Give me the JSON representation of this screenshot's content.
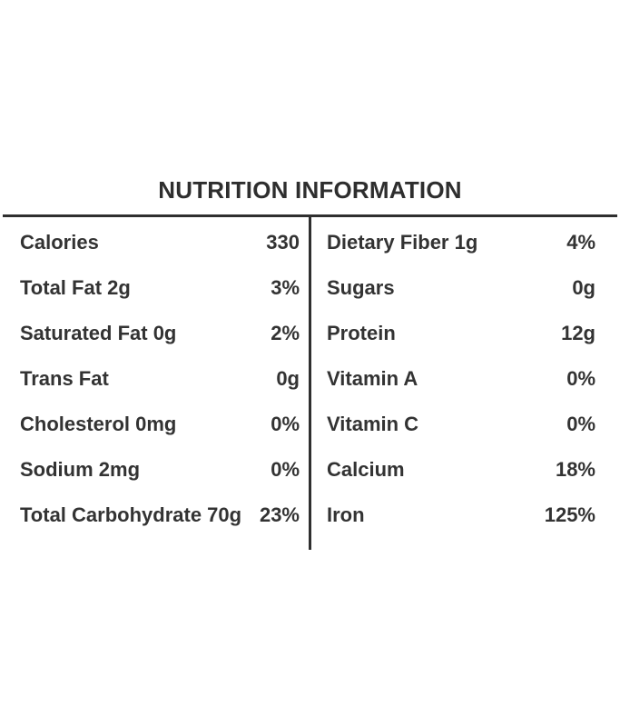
{
  "title": "NUTRITION INFORMATION",
  "table": {
    "left_rows": [
      {
        "label": "Calories",
        "value": "330"
      },
      {
        "label": "Total Fat 2g",
        "value": "3%"
      },
      {
        "label": "Saturated Fat 0g",
        "value": "2%"
      },
      {
        "label": "Trans Fat",
        "value": "0g"
      },
      {
        "label": "Cholesterol 0mg",
        "value": "0%"
      },
      {
        "label": "Sodium 2mg",
        "value": "0%"
      },
      {
        "label": "Total Carbohydrate 70g",
        "value": "23%"
      }
    ],
    "right_rows": [
      {
        "label": "Dietary Fiber 1g",
        "value": "4%"
      },
      {
        "label": "Sugars",
        "value": "0g"
      },
      {
        "label": "Protein",
        "value": "12g"
      },
      {
        "label": "Vitamin A",
        "value": "0%"
      },
      {
        "label": "Vitamin C",
        "value": "0%"
      },
      {
        "label": "Calcium",
        "value": "18%"
      },
      {
        "label": "Iron",
        "value": "125%"
      }
    ]
  },
  "colors": {
    "text": "#333333",
    "line": "#2f2f2f",
    "background": "#ffffff"
  }
}
